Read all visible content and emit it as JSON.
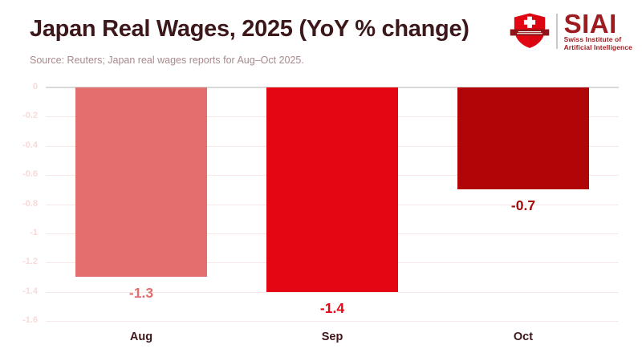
{
  "header": {
    "title": "Japan Real Wages, 2025 (YoY % change)",
    "source": "Source: Reuters; Japan real wages reports for Aug–Oct 2025."
  },
  "logo": {
    "acronym": "SIAI",
    "subtitle_line1": "Swiss Institute of",
    "subtitle_line2": "Artificial Intelligence",
    "text_color": "#9e1c20",
    "shield_color": "#e30613",
    "ribbon_color": "#8f1518"
  },
  "chart_data": {
    "type": "bar",
    "title": "Japan Real Wages, 2025 (YoY % change)",
    "categories": [
      "Aug",
      "Sep",
      "Oct"
    ],
    "values": [
      -1.3,
      -1.4,
      -0.7
    ],
    "data_labels": [
      "-1.3",
      "-1.4",
      "-0.7"
    ],
    "bar_colors": [
      "#e26e6e",
      "#e50613",
      "#b00608"
    ],
    "label_colors": [
      "#e26e6e",
      "#e50613",
      "#a30b0c"
    ],
    "xlabel": "",
    "ylabel": "",
    "ylim": [
      -1.6,
      0
    ],
    "yticks": [
      0,
      -0.2,
      -0.4,
      -0.6,
      -0.8,
      -1,
      -1.2,
      -1.4,
      -1.6
    ],
    "ytick_labels": [
      "0",
      "-0.2",
      "-0.4",
      "-0.6",
      "-0.8",
      "-1",
      "-1.2",
      "-1.4",
      "-1.6"
    ],
    "grid": true,
    "legend": false
  },
  "colors": {
    "background": "#ffffff",
    "title": "#3d181a",
    "source": "#a98a8c",
    "tick_label": "#f9d9d9",
    "gridline": "#f9e6e6",
    "zero_line": "#d9d9d9",
    "category_label": "#3d181a"
  }
}
